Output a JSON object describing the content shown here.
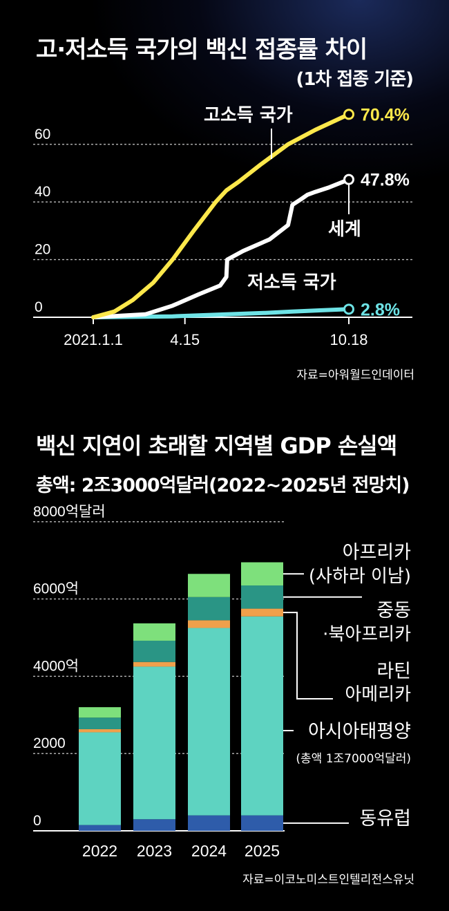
{
  "charts": {
    "line": {
      "title": "고·저소득 국가의 백신 접종률 차이",
      "subtitle": "(1차 접종 기준)",
      "source": "자료=아워월드인데이터",
      "yticks": [
        "0",
        "20",
        "40",
        "60"
      ],
      "xticks": [
        "2021.1.1",
        "4.15",
        "10.18"
      ]
    },
    "bar": {
      "title": "백신 지연이 초래할 지역별 GDP 손실액",
      "subtitle": "총액: 2조3000억달러(2022~2025년 전망치)",
      "source": "자료=이코노미스트인텔리전스유닛",
      "yticks": [
        "0",
        "2000",
        "4000억",
        "6000억",
        "8000억달러"
      ],
      "categories": [
        "2022",
        "2023",
        "2024",
        "2025"
      ],
      "legend": {
        "africa": [
          "아프리카",
          "(사하라 이남)"
        ],
        "mideast": [
          "중동",
          "·북아프리카"
        ],
        "latam": [
          "라틴",
          "아메리카"
        ],
        "asia": [
          "아시아태평양",
          "(총액 1조7000억달러)"
        ],
        "europe": [
          "동유럽"
        ]
      }
    }
  },
  "chart_data": [
    {
      "type": "line",
      "title": "고·저소득 국가의 백신 접종률 차이",
      "subtitle": "(1차 접종 기준)",
      "x_axis": "date",
      "xticks": [
        "2021.1.1",
        "4.15",
        "10.18"
      ],
      "ylim": [
        0,
        70
      ],
      "yticks": [
        0,
        20,
        40,
        60
      ],
      "grid": "horizontal dashed",
      "series": [
        {
          "name": "고소득 국가",
          "color": "#fde84b",
          "end_label": "70.4%",
          "points": [
            [
              "2021-01-01",
              0
            ],
            [
              "2021-01-25",
              2
            ],
            [
              "2021-02-15",
              6
            ],
            [
              "2021-03-10",
              12
            ],
            [
              "2021-04-01",
              20
            ],
            [
              "2021-04-25",
              30
            ],
            [
              "2021-05-20",
              40
            ],
            [
              "2021-06-01",
              44
            ],
            [
              "2021-06-15",
              47
            ],
            [
              "2021-07-10",
              53
            ],
            [
              "2021-08-10",
              60
            ],
            [
              "2021-09-10",
              65
            ],
            [
              "2021-10-18",
              70.4
            ]
          ]
        },
        {
          "name": "세계",
          "color": "#ffffff",
          "end_label": "47.8%",
          "points": [
            [
              "2021-01-01",
              0
            ],
            [
              "2021-03-01",
              1
            ],
            [
              "2021-04-01",
              4
            ],
            [
              "2021-05-01",
              8
            ],
            [
              "2021-05-25",
              11
            ],
            [
              "2021-06-01",
              14
            ],
            [
              "2021-06-02",
              20
            ],
            [
              "2021-06-20",
              23
            ],
            [
              "2021-07-20",
              27
            ],
            [
              "2021-08-10",
              32
            ],
            [
              "2021-08-15",
              39
            ],
            [
              "2021-08-25",
              41
            ],
            [
              "2021-09-01",
              42.5
            ],
            [
              "2021-09-10",
              43.5
            ],
            [
              "2021-09-25",
              45
            ],
            [
              "2021-10-18",
              47.8
            ]
          ]
        },
        {
          "name": "저소득 국가",
          "color": "#6ee3e6",
          "end_label": "2.8%",
          "points": [
            [
              "2021-01-01",
              0
            ],
            [
              "2021-04-01",
              0.3
            ],
            [
              "2021-06-01",
              1
            ],
            [
              "2021-07-15",
              1.5
            ],
            [
              "2021-08-15",
              2
            ],
            [
              "2021-09-15",
              2.4
            ],
            [
              "2021-10-18",
              2.8
            ]
          ]
        }
      ]
    },
    {
      "type": "bar",
      "stacked": true,
      "title": "백신 지연이 초래할 지역별 GDP 손실액",
      "subtitle": "총액: 2조3000억달러(2022~2025년 전망치)",
      "unit": "억달러",
      "categories": [
        "2022",
        "2023",
        "2024",
        "2025"
      ],
      "ylim": [
        0,
        8000
      ],
      "yticks": [
        0,
        2000,
        4000,
        6000,
        8000
      ],
      "grid": "horizontal dashed",
      "series": [
        {
          "name": "동유럽",
          "color": "#2e5caa",
          "values": [
            150,
            300,
            400,
            400
          ]
        },
        {
          "name": "아시아태평양",
          "color": "#5ed3c1",
          "values": [
            2400,
            3950,
            4850,
            5150
          ]
        },
        {
          "name": "라틴 아메리카",
          "color": "#f0a04b",
          "values": [
            80,
            120,
            200,
            200
          ]
        },
        {
          "name": "중동·북아프리카",
          "color": "#2a9585",
          "values": [
            300,
            550,
            600,
            600
          ]
        },
        {
          "name": "아프리카(사하라 이남)",
          "color": "#7ee07c",
          "values": [
            270,
            450,
            600,
            600
          ]
        }
      ]
    }
  ]
}
